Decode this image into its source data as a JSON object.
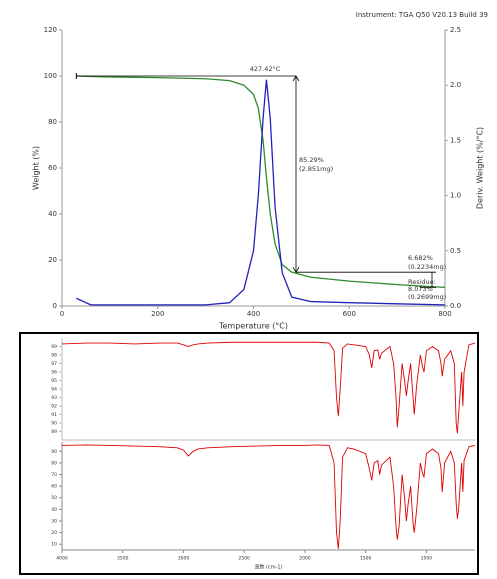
{
  "chart_data": [
    {
      "type": "line",
      "header": "Instrument: TGA Q50 V20.13 Build 39",
      "xlabel": "Temperature (°C)",
      "ylabel": "Weight (%)",
      "y2label": "Deriv. Weight (%/°C)",
      "xlim": [
        0,
        800
      ],
      "xticks": [
        0,
        200,
        400,
        600,
        800
      ],
      "ylim": [
        0,
        120
      ],
      "yticks": [
        0,
        20,
        40,
        60,
        80,
        100,
        120
      ],
      "y2lim": [
        0,
        2.5
      ],
      "y2ticks": [
        {
          "value": 0,
          "label": "0.0"
        },
        0.5,
        {
          "value": 1,
          "label": "1.0"
        },
        1.5,
        {
          "value": 2,
          "label": "2.0"
        },
        2.5
      ],
      "x": [
        30,
        60,
        100,
        200,
        300,
        350,
        380,
        400,
        410,
        420,
        427,
        435,
        445,
        460,
        480,
        520,
        600,
        700,
        800
      ],
      "series": [
        {
          "name": "Weight (%)",
          "color": "#2e8b2e",
          "values": [
            100,
            99.8,
            99.6,
            99.3,
            98.8,
            98,
            96,
            92,
            86,
            72,
            56,
            40,
            27,
            18,
            14.7,
            12.5,
            10.8,
            9.3,
            8.1
          ]
        },
        {
          "name": "Deriv. Weight (%/°C)",
          "color": "#2222bb",
          "axis": "y2",
          "values": [
            0.07,
            0.01,
            0.01,
            0.01,
            0.01,
            0.03,
            0.15,
            0.5,
            1.0,
            1.7,
            2.05,
            1.7,
            0.9,
            0.3,
            0.08,
            0.04,
            0.03,
            0.02,
            0.01
          ]
        }
      ],
      "annotations": [
        "427.42°C",
        "85.29%",
        "(2.851mg)",
        "6.682%",
        "(0.2234mg)",
        "Residue:",
        "8.073%",
        "(0.2699mg)"
      ]
    },
    {
      "type": "line",
      "xlim": [
        4000,
        600
      ],
      "ylim": [
        88,
        100
      ],
      "yticks": [
        89,
        90,
        91,
        92,
        93,
        94,
        95,
        96,
        97,
        98,
        99
      ],
      "x": [
        4000,
        3800,
        3600,
        3400,
        3200,
        3050,
        3000,
        2960,
        2920,
        2880,
        2800,
        2600,
        2400,
        2200,
        2000,
        1900,
        1800,
        1760,
        1740,
        1725,
        1710,
        1690,
        1650,
        1600,
        1500,
        1470,
        1450,
        1430,
        1400,
        1385,
        1370,
        1300,
        1270,
        1250,
        1240,
        1225,
        1200,
        1180,
        1165,
        1150,
        1130,
        1110,
        1100,
        1080,
        1050,
        1030,
        1020,
        1000,
        950,
        900,
        880,
        870,
        850,
        800,
        770,
        755,
        745,
        735,
        710,
        700,
        690,
        650,
        600
      ],
      "series": [
        {
          "color": "#dd0000",
          "values": [
            99.3,
            99.4,
            99.4,
            99.3,
            99.4,
            99.4,
            99.2,
            99.0,
            99.2,
            99.3,
            99.4,
            99.5,
            99.5,
            99.5,
            99.5,
            99.5,
            99.4,
            98.5,
            93,
            90.8,
            94,
            98.8,
            99.3,
            99.2,
            99,
            98,
            96.5,
            98.5,
            98.6,
            97.5,
            98.2,
            99,
            97,
            93,
            89.5,
            92,
            97,
            95,
            93.2,
            95,
            97,
            93,
            91,
            94.5,
            98,
            96.5,
            96,
            98.5,
            99,
            98.5,
            97,
            95.5,
            97.5,
            98.5,
            97,
            90,
            88.8,
            91,
            96,
            92,
            96,
            99.2,
            99.4
          ]
        }
      ]
    },
    {
      "type": "line",
      "xlabel": "波数 (cm-1)",
      "xlim": [
        4000,
        600
      ],
      "xticks": [
        4000,
        3500,
        3000,
        2500,
        2000,
        1500,
        1000
      ],
      "ylim": [
        5,
        98
      ],
      "yticks": [
        10,
        20,
        30,
        40,
        50,
        60,
        70,
        80,
        90
      ],
      "x": [
        4000,
        3800,
        3600,
        3400,
        3200,
        3050,
        3000,
        2960,
        2920,
        2880,
        2800,
        2600,
        2400,
        2200,
        2000,
        1900,
        1800,
        1760,
        1740,
        1725,
        1710,
        1690,
        1650,
        1600,
        1500,
        1470,
        1450,
        1430,
        1400,
        1385,
        1370,
        1300,
        1270,
        1250,
        1240,
        1225,
        1200,
        1180,
        1165,
        1150,
        1130,
        1110,
        1100,
        1080,
        1050,
        1030,
        1020,
        1000,
        950,
        900,
        880,
        870,
        850,
        800,
        770,
        755,
        745,
        735,
        710,
        700,
        690,
        650,
        600
      ],
      "series": [
        {
          "color": "#dd0000",
          "values": [
            95,
            95.5,
            95,
            94.5,
            94,
            93,
            91,
            86,
            90,
            92,
            93,
            94,
            94.5,
            95,
            95,
            95.5,
            95,
            80,
            20,
            6,
            30,
            85,
            93,
            92,
            88,
            75,
            65,
            80,
            82,
            70,
            78,
            85,
            60,
            25,
            14,
            25,
            70,
            50,
            30,
            45,
            60,
            28,
            20,
            40,
            80,
            70,
            68,
            88,
            92,
            88,
            75,
            55,
            80,
            90,
            80,
            45,
            32,
            40,
            80,
            55,
            82,
            94,
            95
          ]
        }
      ]
    }
  ]
}
